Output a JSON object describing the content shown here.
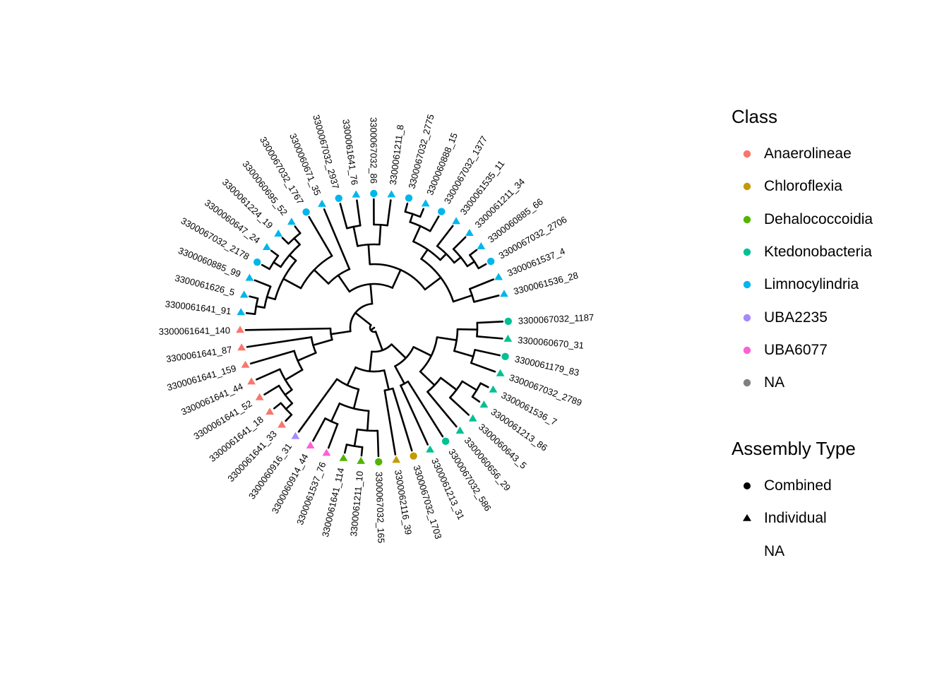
{
  "legend_class": {
    "title": "Class",
    "items": [
      {
        "label": "Anaerolineae",
        "color": "#F8766D"
      },
      {
        "label": "Chloroflexia",
        "color": "#C49A00"
      },
      {
        "label": "Dehalococcoidia",
        "color": "#53B400"
      },
      {
        "label": "Ktedonobacteria",
        "color": "#00C094"
      },
      {
        "label": "Limnocylindria",
        "color": "#00B6EB"
      },
      {
        "label": "UBA2235",
        "color": "#A58AFF"
      },
      {
        "label": "UBA6077",
        "color": "#FB61D7"
      },
      {
        "label": "NA",
        "color": "#808080"
      }
    ]
  },
  "legend_assembly": {
    "title": "Assembly Type",
    "items": [
      {
        "label": "Combined",
        "shape": "circle"
      },
      {
        "label": "Individual",
        "shape": "triangle"
      },
      {
        "label": "NA",
        "shape": "none"
      }
    ]
  },
  "tips": [
    {
      "label": "3300061536_28",
      "class": "Limnocylindria",
      "assembly": "Individual"
    },
    {
      "label": "3300061537_4",
      "class": "Limnocylindria",
      "assembly": "Individual"
    },
    {
      "label": "3300067032_2706",
      "class": "Limnocylindria",
      "assembly": "Combined"
    },
    {
      "label": "3300060885_66",
      "class": "Limnocylindria",
      "assembly": "Individual"
    },
    {
      "label": "3300061211_34",
      "class": "Limnocylindria",
      "assembly": "Individual"
    },
    {
      "label": "3300061535_11",
      "class": "Limnocylindria",
      "assembly": "Individual"
    },
    {
      "label": "3300067032_1377",
      "class": "Limnocylindria",
      "assembly": "Combined"
    },
    {
      "label": "3300060888_15",
      "class": "Limnocylindria",
      "assembly": "Individual"
    },
    {
      "label": "3300067032_2775",
      "class": "Limnocylindria",
      "assembly": "Combined"
    },
    {
      "label": "3300061211_8",
      "class": "Limnocylindria",
      "assembly": "Individual"
    },
    {
      "label": "3300067032_86",
      "class": "Limnocylindria",
      "assembly": "Combined"
    },
    {
      "label": "3300061641_76",
      "class": "Limnocylindria",
      "assembly": "Individual"
    },
    {
      "label": "3300067032_2937",
      "class": "Limnocylindria",
      "assembly": "Combined"
    },
    {
      "label": "3300060671_35",
      "class": "Limnocylindria",
      "assembly": "Individual"
    },
    {
      "label": "3300067032_1767",
      "class": "Limnocylindria",
      "assembly": "Combined"
    },
    {
      "label": "3300060695_52",
      "class": "Limnocylindria",
      "assembly": "Individual"
    },
    {
      "label": "3300061224_19",
      "class": "Limnocylindria",
      "assembly": "Individual"
    },
    {
      "label": "3300060647_24",
      "class": "Limnocylindria",
      "assembly": "Individual"
    },
    {
      "label": "3300067032_2178",
      "class": "Limnocylindria",
      "assembly": "Combined"
    },
    {
      "label": "3300060885_99",
      "class": "Limnocylindria",
      "assembly": "Individual"
    },
    {
      "label": "3300061626_5",
      "class": "Limnocylindria",
      "assembly": "Individual"
    },
    {
      "label": "3300061641_91",
      "class": "Limnocylindria",
      "assembly": "Individual"
    },
    {
      "label": "3300061641_140",
      "class": "Anaerolineae",
      "assembly": "Individual"
    },
    {
      "label": "3300061641_87",
      "class": "Anaerolineae",
      "assembly": "Individual"
    },
    {
      "label": "3300061641_159",
      "class": "Anaerolineae",
      "assembly": "Individual"
    },
    {
      "label": "3300061641_44",
      "class": "Anaerolineae",
      "assembly": "Individual"
    },
    {
      "label": "3300061641_52",
      "class": "Anaerolineae",
      "assembly": "Individual"
    },
    {
      "label": "3300061641_18",
      "class": "Anaerolineae",
      "assembly": "Individual"
    },
    {
      "label": "3300061641_33",
      "class": "Anaerolineae",
      "assembly": "Individual"
    },
    {
      "label": "3300060916_31",
      "class": "UBA2235",
      "assembly": "Individual"
    },
    {
      "label": "3300060914_44",
      "class": "UBA6077",
      "assembly": "Individual"
    },
    {
      "label": "3300061537_76",
      "class": "UBA6077",
      "assembly": "Individual"
    },
    {
      "label": "3300061641_114",
      "class": "Dehalococcoidia",
      "assembly": "Individual"
    },
    {
      "label": "3300061211_10",
      "class": "Dehalococcoidia",
      "assembly": "Individual"
    },
    {
      "label": "3300067032_165",
      "class": "Dehalococcoidia",
      "assembly": "Combined"
    },
    {
      "label": "3300062116_39",
      "class": "Chloroflexia",
      "assembly": "Individual"
    },
    {
      "label": "3300067032_1703",
      "class": "Chloroflexia",
      "assembly": "Combined"
    },
    {
      "label": "3300061213_31",
      "class": "Ktedonobacteria",
      "assembly": "Individual"
    },
    {
      "label": "3300067032_586",
      "class": "Ktedonobacteria",
      "assembly": "Combined"
    },
    {
      "label": "3300060656_29",
      "class": "Ktedonobacteria",
      "assembly": "Individual"
    },
    {
      "label": "3300060643_5",
      "class": "Ktedonobacteria",
      "assembly": "Individual"
    },
    {
      "label": "3300061213_86",
      "class": "Ktedonobacteria",
      "assembly": "Individual"
    },
    {
      "label": "3300061536_7",
      "class": "Ktedonobacteria",
      "assembly": "Individual"
    },
    {
      "label": "3300067032_2789",
      "class": "Ktedonobacteria",
      "assembly": "Individual"
    },
    {
      "label": "3300061179_83",
      "class": "Ktedonobacteria",
      "assembly": "Combined"
    },
    {
      "label": "3300060670_31",
      "class": "Ktedonobacteria",
      "assembly": "Individual"
    },
    {
      "label": "3300067032_1187",
      "class": "Ktedonobacteria",
      "assembly": "Combined"
    }
  ],
  "tree": {
    "type": "circular-phylogram",
    "topology": "((((((0,1),((((2,3),4),5),(6,(7,8)))),((9,10),(11,12))),(13,(14,(((15,16),(17,18)),(19,(20,21)))))),(22,(23,(24,(25,(26,(27,28))))))),(((29,((30,31),((32,33),34))),(35,36)),((37,38),((39,(40,(41,42))),((43,44),(45,46))))))"
  }
}
